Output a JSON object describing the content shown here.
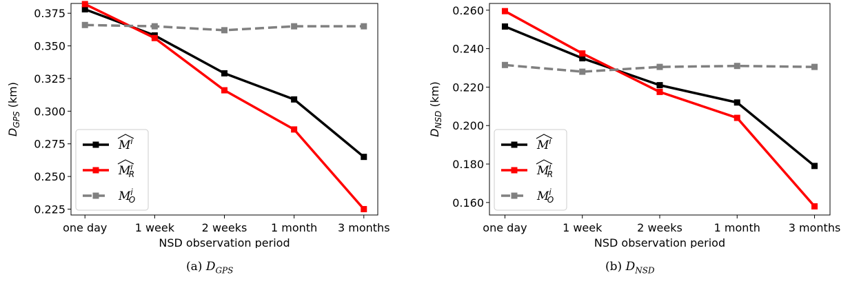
{
  "chart_data": [
    {
      "type": "line",
      "categories": [
        "one day",
        "1 week",
        "2 weeks",
        "1 month",
        "3 months"
      ],
      "xlabel": "NSD observation period",
      "ylabel": {
        "base": "D",
        "sub": "GPS",
        "unit": "(km)"
      },
      "ylim": [
        0.2205,
        0.3825
      ],
      "yticks": [
        "0.225",
        "0.250",
        "0.275",
        "0.300",
        "0.325",
        "0.350",
        "0.375"
      ],
      "grid": false,
      "legend_position": "lower-left",
      "series": [
        {
          "name": "M̂ⁱ",
          "color": "#000000",
          "dash": false,
          "values": [
            0.378,
            0.358,
            0.329,
            0.309,
            0.265
          ]
        },
        {
          "name": "M̂ⁱ_R",
          "color": "#ff0000",
          "dash": false,
          "values": [
            0.382,
            0.356,
            0.316,
            0.286,
            0.225
          ]
        },
        {
          "name": "Mⁱ_O",
          "color": "#808080",
          "dash": true,
          "values": [
            0.366,
            0.365,
            0.362,
            0.365,
            0.365
          ]
        }
      ],
      "caption": {
        "label": "(a)",
        "base": "D",
        "sub": "GPS"
      }
    },
    {
      "type": "line",
      "categories": [
        "one day",
        "1 week",
        "2 weeks",
        "1 month",
        "3 months"
      ],
      "xlabel": "NSD observation period",
      "ylabel": {
        "base": "D",
        "sub": "NSD",
        "unit": "(km)"
      },
      "ylim": [
        0.1535,
        0.2635
      ],
      "yticks": [
        "0.160",
        "0.180",
        "0.200",
        "0.220",
        "0.240",
        "0.260"
      ],
      "grid": false,
      "legend_position": "lower-left",
      "series": [
        {
          "name": "M̂ⁱ",
          "color": "#000000",
          "dash": false,
          "values": [
            0.2515,
            0.235,
            0.221,
            0.212,
            0.179
          ]
        },
        {
          "name": "M̂ⁱ_R",
          "color": "#ff0000",
          "dash": false,
          "values": [
            0.2595,
            0.2375,
            0.2175,
            0.204,
            0.158
          ]
        },
        {
          "name": "Mⁱ_O",
          "color": "#808080",
          "dash": true,
          "values": [
            0.2315,
            0.228,
            0.2305,
            0.231,
            0.2305
          ]
        }
      ],
      "caption": {
        "label": "(b)",
        "base": "D",
        "sub": "NSD"
      }
    }
  ]
}
